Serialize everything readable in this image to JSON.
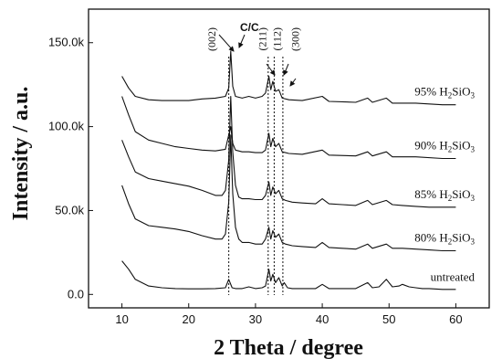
{
  "chart_data": {
    "type": "line",
    "xlabel": "2 Theta / degree",
    "ylabel": "Intensity / a.u.",
    "xlim": [
      5,
      65
    ],
    "ylim": [
      -8000,
      170000
    ],
    "x_ticks": [
      "10",
      "20",
      "30",
      "40",
      "50",
      "60"
    ],
    "y_ticks": [
      {
        "value": 0,
        "label": "0.0"
      },
      {
        "value": 50000,
        "label": "50.0k"
      },
      {
        "value": 100000,
        "label": "100.0k"
      },
      {
        "value": 150000,
        "label": "150.0k"
      }
    ],
    "series": [
      {
        "name": "untreated",
        "name_parts": [
          "untreated"
        ],
        "baseline": 2500,
        "x": [
          10,
          11,
          12,
          14,
          16,
          18,
          20,
          22,
          24,
          25.5,
          26,
          26.5,
          27,
          28,
          29,
          30,
          31,
          31.5,
          32,
          32.3,
          32.6,
          33,
          33.5,
          34,
          34.3,
          34.8,
          35.5,
          37,
          39,
          40,
          41,
          43,
          45,
          46.8,
          47.5,
          48.5,
          49.6,
          50.5,
          51.5,
          52,
          53,
          54,
          55,
          56,
          58,
          60
        ],
        "y": [
          20000,
          15000,
          9000,
          5000,
          4000,
          3500,
          3300,
          3300,
          3500,
          4000,
          9000,
          4000,
          3500,
          3500,
          4500,
          3500,
          4000,
          5000,
          15000,
          8000,
          12000,
          7000,
          10000,
          5000,
          7000,
          4000,
          3500,
          3500,
          3500,
          6000,
          3500,
          3500,
          3500,
          7000,
          4000,
          4500,
          9000,
          4500,
          5000,
          6000,
          4500,
          4000,
          3500,
          3500,
          3000,
          3000
        ]
      },
      {
        "name": "80% H2SiO3",
        "name_parts": [
          "80% H",
          "2",
          "SiO",
          "3"
        ],
        "baseline": 26000,
        "x": [
          10,
          11,
          12,
          14,
          16,
          18,
          20,
          22,
          24,
          25,
          25.5,
          26,
          26.3,
          26.6,
          27,
          27.5,
          28,
          29,
          30,
          31,
          31.5,
          32,
          32.3,
          32.6,
          33,
          33.5,
          34,
          34.5,
          35.5,
          37,
          39,
          40,
          41,
          43,
          45,
          46.8,
          47.5,
          49.6,
          50.5,
          52,
          54,
          56,
          58,
          60
        ],
        "y": [
          65000,
          54000,
          45000,
          41000,
          40000,
          39000,
          37500,
          35000,
          33000,
          33000,
          36000,
          55000,
          95000,
          60000,
          40000,
          33000,
          31000,
          31000,
          30000,
          30000,
          33000,
          40000,
          33000,
          38000,
          34000,
          36000,
          31000,
          30000,
          29000,
          28500,
          28000,
          31000,
          28000,
          27500,
          27000,
          30000,
          27500,
          30000,
          27500,
          27500,
          27000,
          26500,
          26000,
          26000
        ]
      },
      {
        "name": "85% H2SiO3",
        "name_parts": [
          "85% H",
          "2",
          "SiO",
          "3"
        ],
        "baseline": 52000,
        "x": [
          10,
          11,
          12,
          14,
          16,
          18,
          20,
          22,
          24,
          25,
          25.5,
          26,
          26.3,
          26.6,
          27,
          27.5,
          28,
          29,
          30,
          31,
          31.5,
          32,
          32.3,
          32.6,
          33,
          33.5,
          34,
          34.5,
          35.5,
          37,
          39,
          40,
          41,
          43,
          45,
          46.8,
          47.5,
          49.6,
          50.5,
          52,
          54,
          56,
          58,
          60
        ],
        "y": [
          92000,
          82000,
          73000,
          69000,
          67500,
          66000,
          64500,
          62000,
          59000,
          59000,
          62000,
          80000,
          118000,
          85000,
          65000,
          58000,
          57000,
          57000,
          56500,
          56500,
          59000,
          67000,
          59000,
          64000,
          60000,
          62000,
          57000,
          56000,
          55000,
          54500,
          54000,
          57000,
          54000,
          53500,
          53000,
          56000,
          53500,
          56000,
          53500,
          53000,
          52500,
          52000,
          52000,
          52000
        ]
      },
      {
        "name": "90% H2SiO3",
        "name_parts": [
          "90% H",
          "2",
          "SiO",
          "3"
        ],
        "baseline": 81000,
        "x": [
          10,
          11,
          12,
          14,
          16,
          18,
          20,
          22,
          24,
          25.5,
          26,
          26.3,
          26.6,
          27,
          28,
          29,
          30,
          31,
          31.5,
          32,
          32.3,
          32.6,
          33,
          33.5,
          34,
          35,
          37,
          40,
          41,
          45,
          46.8,
          47.5,
          49.6,
          50.5,
          54,
          58,
          60
        ],
        "y": [
          118000,
          107000,
          97000,
          92000,
          90000,
          88000,
          87000,
          86000,
          85500,
          86500,
          95000,
          100000,
          90000,
          86000,
          85000,
          85000,
          84500,
          84500,
          86000,
          96000,
          88000,
          93000,
          88000,
          90000,
          85000,
          84000,
          83500,
          86000,
          83000,
          82500,
          85000,
          82500,
          85000,
          82000,
          82000,
          81000,
          81000
        ]
      },
      {
        "name": "95% H2SiO3",
        "name_parts": [
          "95% H",
          "2",
          "SiO",
          "3"
        ],
        "baseline": 113000,
        "x": [
          10,
          11,
          12,
          14,
          16,
          18,
          20,
          22,
          24,
          25.5,
          26,
          26.3,
          26.6,
          27,
          28,
          29,
          30,
          31,
          31.5,
          32,
          32.3,
          32.6,
          33,
          33.5,
          34,
          35,
          37,
          40,
          41,
          45,
          46.8,
          47.5,
          49.6,
          50.5,
          54,
          58,
          60
        ],
        "y": [
          130000,
          123000,
          118000,
          116000,
          115500,
          115500,
          115500,
          116500,
          117000,
          118000,
          123000,
          145000,
          124000,
          118000,
          117000,
          118000,
          117000,
          118000,
          120000,
          130000,
          122000,
          127000,
          121000,
          122000,
          117000,
          116000,
          115500,
          118000,
          115000,
          114500,
          117000,
          114500,
          117000,
          114000,
          114000,
          113000,
          113000
        ]
      }
    ],
    "reference_lines_x": [
      26.0,
      31.9,
      32.8,
      34.1
    ],
    "peak_labels": [
      {
        "text": "(002)",
        "x": 24.0
      },
      {
        "text": "(211)",
        "x": 31.6
      },
      {
        "text": "(112)",
        "x": 33.8
      },
      {
        "text": "(300)",
        "x": 36.5
      }
    ],
    "annotation": "C/C",
    "grid": false
  }
}
